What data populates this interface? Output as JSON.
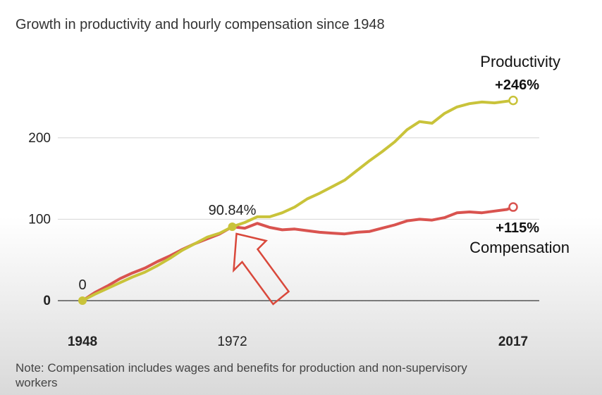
{
  "chart_data": {
    "type": "line",
    "title": "Growth in productivity and hourly compensation since 1948",
    "xlabel": "",
    "ylabel": "",
    "x": [
      1948,
      1950,
      1952,
      1954,
      1956,
      1958,
      1960,
      1962,
      1964,
      1966,
      1968,
      1970,
      1972,
      1974,
      1976,
      1978,
      1980,
      1982,
      1984,
      1986,
      1988,
      1990,
      1992,
      1994,
      1996,
      1998,
      2000,
      2002,
      2004,
      2006,
      2008,
      2010,
      2012,
      2014,
      2016,
      2017
    ],
    "xlim": [
      1948,
      2017
    ],
    "ylim": [
      0,
      250
    ],
    "y_ticks": [
      0,
      100,
      200
    ],
    "y_tick_labels": [
      "0",
      "100",
      "200"
    ],
    "x_tick_labels": [
      {
        "value": 1948,
        "label": "1948",
        "bold": true
      },
      {
        "value": 1972,
        "label": "1972",
        "bold": false
      },
      {
        "value": 2017,
        "label": "2017",
        "bold": true
      }
    ],
    "grid": true,
    "series": [
      {
        "name": "Productivity",
        "change_label": "+246%",
        "color": "#c9c33a",
        "values": [
          0,
          8,
          15,
          22,
          29,
          35,
          43,
          52,
          62,
          70,
          78,
          83,
          90.84,
          96,
          103,
          103,
          108,
          115,
          125,
          132,
          140,
          148,
          160,
          172,
          183,
          195,
          210,
          220,
          218,
          230,
          238,
          242,
          244,
          243,
          245,
          246
        ]
      },
      {
        "name": "Compensation",
        "change_label": "+115%",
        "color": "#d9534f",
        "values": [
          0,
          10,
          18,
          27,
          34,
          40,
          48,
          55,
          63,
          70,
          76,
          82,
          90.84,
          89,
          95,
          90,
          87,
          88,
          86,
          84,
          83,
          82,
          84,
          85,
          89,
          93,
          98,
          100,
          99,
          102,
          108,
          109,
          108,
          110,
          112,
          115
        ]
      }
    ],
    "annotations": [
      {
        "x": 1948,
        "y": 0,
        "label": "0"
      },
      {
        "x": 1972,
        "y": 90.84,
        "label": "90.84%"
      }
    ],
    "arrow_color": "#d9483b",
    "note": "Note: Compensation includes wages and benefits for production and non-supervisory workers",
    "note_lines": [
      "Note: Compensation includes wages and benefits for production and non-supervisory",
      "workers"
    ]
  }
}
